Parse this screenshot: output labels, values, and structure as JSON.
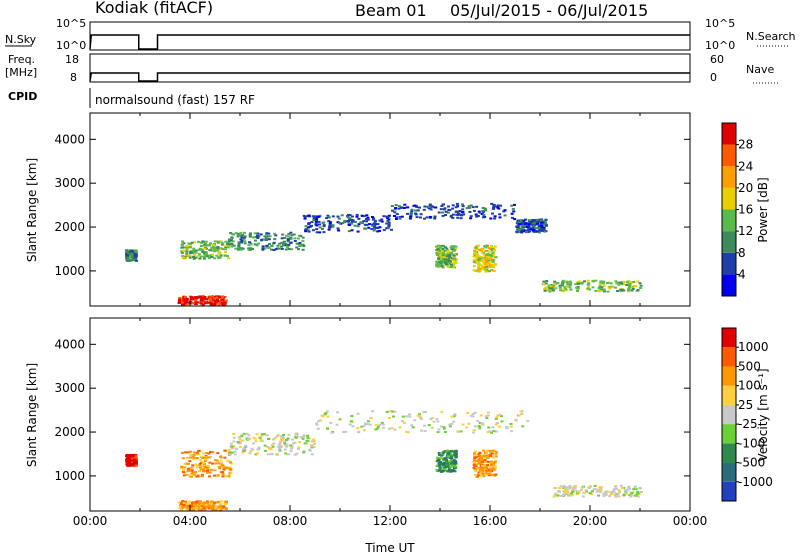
{
  "header": {
    "station": "Kodiak (fitACF)",
    "beam": "Beam 01",
    "dates": "05/Jul/2015 - 06/Jul/2015"
  },
  "panels": {
    "nsky_label": "N.Sky",
    "nsky_ticks": [
      "10^5",
      "10^0"
    ],
    "nsearch_label": "N.Search",
    "nsearch_ticks": [
      "10^5",
      "10^0"
    ],
    "freq_label": [
      "Freq.",
      "[MHz]"
    ],
    "freq_ticks": [
      "18",
      "8"
    ],
    "nave_label": "Nave",
    "nave_ticks": [
      "60",
      "0"
    ],
    "cpid_label": "CPID",
    "cpid_text": "normalsound (fast) 157 RF"
  },
  "chart_data": [
    {
      "type": "heatmap",
      "name": "power",
      "ylabel": "Slant Range [km]",
      "xlabel": "",
      "yticks": [
        "1000",
        "2000",
        "3000",
        "4000"
      ],
      "ylim": [
        200,
        4600
      ],
      "xlim": [
        0,
        24
      ],
      "colorbar_label": "Power [dB]",
      "colorbar_ticks": [
        "4",
        "8",
        "12",
        "16",
        "20",
        "24",
        "28"
      ],
      "colorbar_colors": [
        "#0000ee",
        "#1e3fa8",
        "#3d8a5c",
        "#58bb4b",
        "#e8d000",
        "#ff9e00",
        "#ff5a00",
        "#e00000"
      ],
      "regions": [
        {
          "t": [
            1.4,
            1.8
          ],
          "r": [
            1250,
            1500
          ],
          "level": 2
        },
        {
          "t": [
            3.5,
            5.4
          ],
          "r": [
            250,
            450
          ],
          "level": 7
        },
        {
          "t": [
            3.6,
            5.5
          ],
          "r": [
            1300,
            1700
          ],
          "level": 3
        },
        {
          "t": [
            5.5,
            8.5
          ],
          "r": [
            1500,
            1900
          ],
          "level": 2
        },
        {
          "t": [
            8.5,
            12.0
          ],
          "r": [
            1900,
            2300
          ],
          "level": 1
        },
        {
          "t": [
            12.0,
            17.0
          ],
          "r": [
            2200,
            2550
          ],
          "level": 1
        },
        {
          "t": [
            17.0,
            18.2
          ],
          "r": [
            1900,
            2200
          ],
          "level": 1
        },
        {
          "t": [
            13.8,
            14.6
          ],
          "r": [
            1100,
            1600
          ],
          "level": 3
        },
        {
          "t": [
            15.3,
            16.2
          ],
          "r": [
            1000,
            1600
          ],
          "level": 4
        },
        {
          "t": [
            18.0,
            22.0
          ],
          "r": [
            550,
            800
          ],
          "level": 3
        }
      ]
    },
    {
      "type": "heatmap",
      "name": "velocity",
      "ylabel": "Slant Range [km]",
      "xlabel": "Time UT",
      "xticks": [
        "00:00",
        "04:00",
        "08:00",
        "12:00",
        "16:00",
        "20:00",
        "00:00"
      ],
      "yticks": [
        "1000",
        "2000",
        "3000",
        "4000"
      ],
      "ylim": [
        200,
        4600
      ],
      "xlim": [
        0,
        24
      ],
      "colorbar_label": "Velocity [m s⁻¹]",
      "colorbar_ticks": [
        "1000",
        "500",
        "100",
        "25",
        "-25",
        "-100",
        "-500",
        "-1000"
      ],
      "colorbar_colors": [
        "#2040c0",
        "#2a6d7a",
        "#2e8a4a",
        "#6ad036",
        "#c8c8c8",
        "#ffcf40",
        "#ff9800",
        "#ff5a00",
        "#e00000"
      ],
      "regions": [
        {
          "t": [
            1.4,
            1.8
          ],
          "r": [
            1250,
            1500
          ],
          "level": 8
        },
        {
          "t": [
            3.5,
            5.4
          ],
          "r": [
            250,
            450
          ],
          "level": 6
        },
        {
          "t": [
            3.6,
            5.6
          ],
          "r": [
            1000,
            1600
          ],
          "level": 6
        },
        {
          "t": [
            5.5,
            9.0
          ],
          "r": [
            1500,
            2000
          ],
          "level": 4
        },
        {
          "t": [
            9.0,
            17.5
          ],
          "r": [
            2000,
            2500
          ],
          "level": 4
        },
        {
          "t": [
            13.8,
            14.6
          ],
          "r": [
            1100,
            1600
          ],
          "level": 2
        },
        {
          "t": [
            15.3,
            16.2
          ],
          "r": [
            1000,
            1600
          ],
          "level": 6
        },
        {
          "t": [
            18.5,
            22.0
          ],
          "r": [
            550,
            800
          ],
          "level": 4
        }
      ]
    }
  ]
}
